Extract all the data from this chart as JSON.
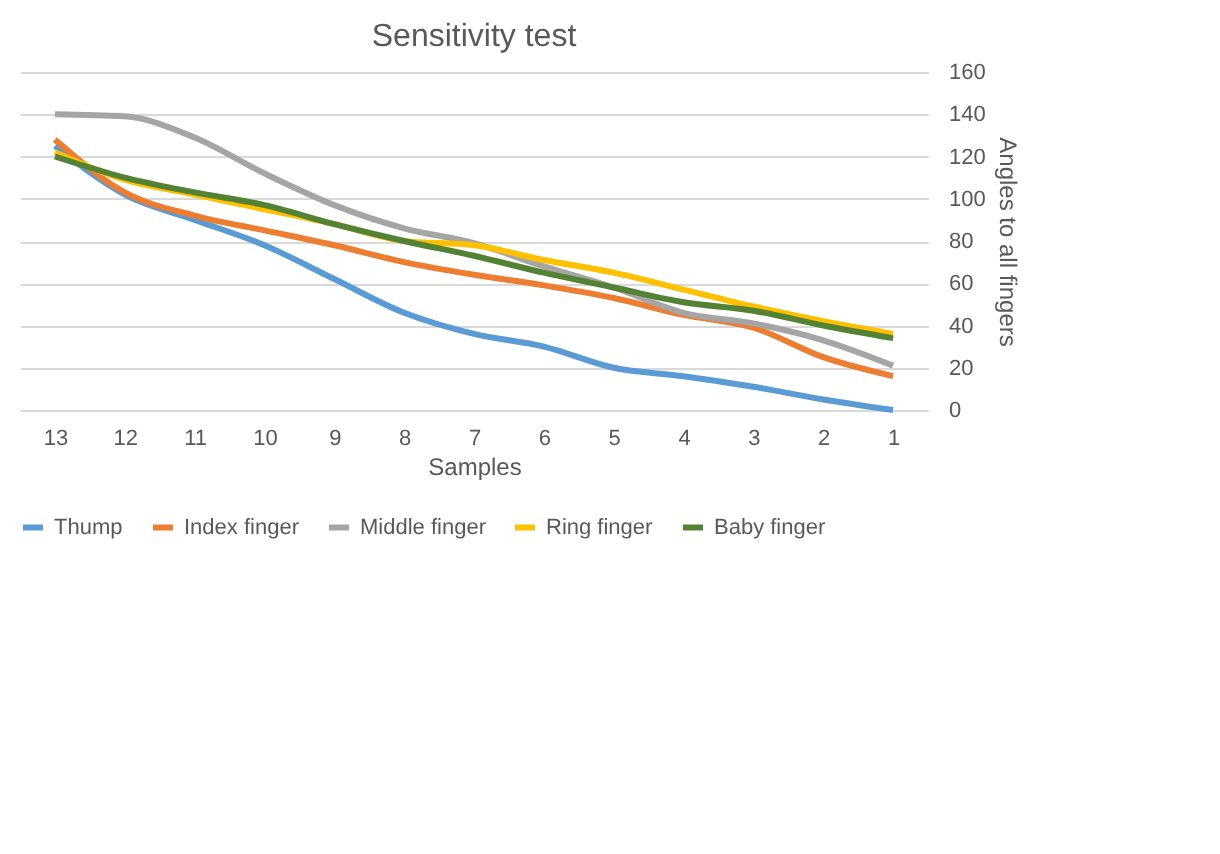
{
  "chart_data": {
    "type": "line",
    "title": "Sensitivity test",
    "xlabel": "Samples",
    "ylabel": "Angles  to all fingers",
    "categories": [
      "13",
      "12",
      "11",
      "10",
      "9",
      "8",
      "7",
      "6",
      "5",
      "4",
      "3",
      "2",
      "1"
    ],
    "series": [
      {
        "name": "Thump",
        "color": "#5b9bd5",
        "values": [
          125,
          102,
          90,
          78,
          62,
          46,
          36,
          30,
          20,
          16,
          11,
          5,
          0
        ]
      },
      {
        "name": "Index finger",
        "color": "#ed7d31",
        "values": [
          128,
          103,
          92,
          85,
          78,
          70,
          64,
          59,
          53,
          45,
          39,
          25,
          16
        ]
      },
      {
        "name": "Middle finger",
        "color": "#a5a5a5",
        "values": [
          140,
          139,
          129,
          112,
          97,
          86,
          79,
          68,
          58,
          46,
          41,
          33,
          21
        ]
      },
      {
        "name": "Ring finger",
        "color": "#ffc000",
        "values": [
          122,
          109,
          102,
          95,
          88,
          80,
          78,
          71,
          65,
          57,
          49,
          42,
          36
        ]
      },
      {
        "name": "Baby finger",
        "color": "#548235",
        "values": [
          120,
          110,
          103,
          97,
          88,
          80,
          73,
          65,
          58,
          51,
          47,
          40,
          34
        ]
      }
    ],
    "ylim": [
      0,
      160
    ],
    "yticks": [
      0,
      20,
      40,
      60,
      80,
      100,
      120,
      140,
      160
    ],
    "grid": "y",
    "legend": "bottom",
    "marker": "none",
    "line_style": "solid"
  }
}
